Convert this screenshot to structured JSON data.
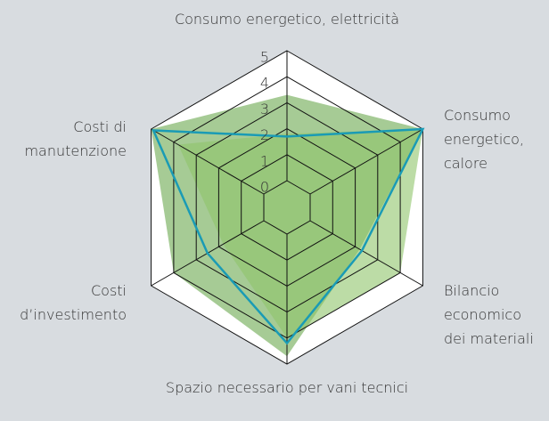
{
  "chart_data": {
    "type": "radar",
    "categories": [
      [
        "Consumo energetico, elettricità"
      ],
      [
        "Consumo",
        "energetico,",
        "calore"
      ],
      [
        "Bilancio",
        "economico",
        "dei materiali"
      ],
      [
        "Spazio necessario per vani tecnici"
      ],
      [
        "Costi",
        "d’investimento"
      ],
      [
        "Costi di",
        "manutenzione"
      ]
    ],
    "rlim": [
      0,
      5
    ],
    "rticks": [
      0,
      1,
      2,
      3,
      4,
      5
    ],
    "series": [
      {
        "color": "#6aa84f",
        "style": "area",
        "values": [
          3.3,
          5,
          2.2,
          4.7,
          4.0,
          5
        ]
      },
      {
        "color": "#8fc46a",
        "style": "area",
        "values": [
          1.8,
          5,
          4.0,
          4.0,
          1.8,
          3.8
        ]
      },
      {
        "color": "#1a9bb5",
        "style": "line",
        "values": [
          1.7,
          5,
          2.3,
          4.2,
          2.5,
          4.9
        ]
      }
    ]
  }
}
